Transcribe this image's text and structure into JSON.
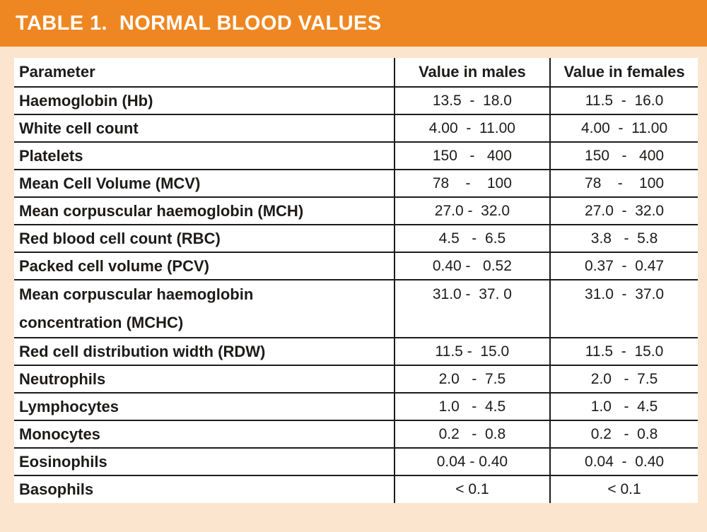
{
  "page": {
    "background_color": "#fbe5cf"
  },
  "header": {
    "title": "TABLE 1.  NORMAL BLOOD VALUES",
    "background_color": "#ee8721",
    "text_color": "#ffffff"
  },
  "table": {
    "cell_background": "#ffffff",
    "border_color": "#1e1c1a",
    "text_color": "#1d1b19",
    "columns": [
      "Parameter",
      "Value in males",
      "Value in females"
    ],
    "rows": [
      {
        "parameter": "Haemoglobin (Hb)",
        "male": "13.5  -  18.0",
        "female": "11.5  -  16.0"
      },
      {
        "parameter": "White cell count",
        "male": "4.00  -  11.00",
        "female": "4.00  -  11.00"
      },
      {
        "parameter": "Platelets",
        "male": "150   -   400",
        "female": "150   -   400"
      },
      {
        "parameter": "Mean Cell Volume (MCV)",
        "male": "78    -    100",
        "female": "78    -    100"
      },
      {
        "parameter": "Mean corpuscular haemoglobin (MCH)",
        "male": "27.0 -  32.0",
        "female": "27.0  -  32.0"
      },
      {
        "parameter": "Red blood cell count (RBC)",
        "male": "4.5   -  6.5",
        "female": "3.8   -  5.8"
      },
      {
        "parameter": "Packed cell volume (PCV)",
        "male": "0.40 -   0.52",
        "female": "0.37  -  0.47"
      },
      {
        "parameter": "Mean corpuscular haemoglobin",
        "parameter_line2": "concentration (MCHC)",
        "male": "31.0 -  37. 0",
        "female": "31.0  -  37.0"
      },
      {
        "parameter": "Red cell distribution width (RDW)",
        "male": "11.5 -  15.0",
        "female": "11.5  -  15.0"
      },
      {
        "parameter": "Neutrophils",
        "male": "2.0   -  7.5",
        "female": "2.0   -  7.5"
      },
      {
        "parameter": "Lymphocytes",
        "male": "1.0   -  4.5",
        "female": "1.0   -  4.5"
      },
      {
        "parameter": "Monocytes",
        "male": "0.2   -  0.8",
        "female": "0.2   -  0.8"
      },
      {
        "parameter": "Eosinophils",
        "male": "0.04 - 0.40",
        "female": "0.04  -  0.40"
      },
      {
        "parameter": "Basophils",
        "male": "< 0.1",
        "female": "< 0.1"
      }
    ]
  }
}
